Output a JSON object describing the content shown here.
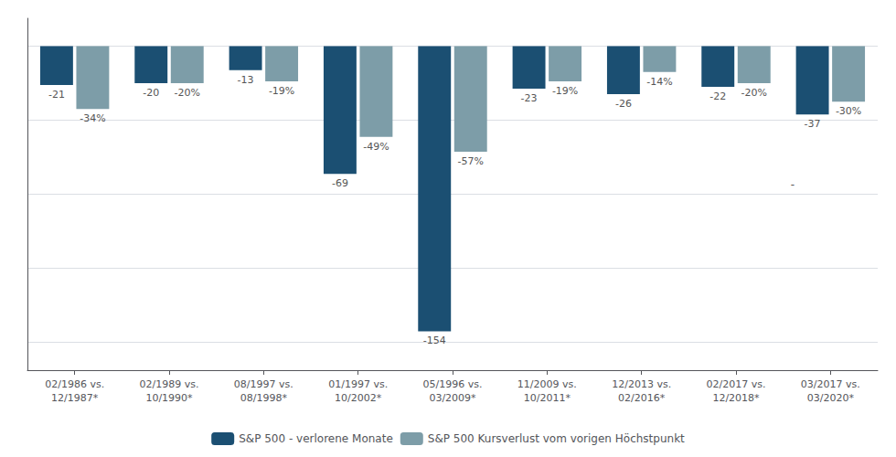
{
  "chart_data": {
    "type": "bar",
    "categories": [
      "02/1986 vs.\n12/1987*",
      "02/1989 vs.\n10/1990*",
      "08/1997 vs.\n08/1998*",
      "01/1997 vs.\n10/2002*",
      "05/1996 vs.\n03/2009*",
      "11/2009 vs.\n10/2011*",
      "12/2013 vs.\n02/2016*",
      "02/2017 vs.\n12/2018*",
      "03/2017 vs.\n03/2020*"
    ],
    "series": [
      {
        "name": "S&P 500 - verlorene Monate",
        "color": "#1b4f72",
        "values": [
          -21,
          -20,
          -13,
          -69,
          -154,
          -23,
          -26,
          -22,
          -37
        ]
      },
      {
        "name": "S&P 500 Kursverlust vom vorigen Höchstpunkt",
        "color": "#7d9da8",
        "values": [
          -34,
          -20,
          -19,
          -49,
          -57,
          -19,
          -14,
          -20,
          -30
        ],
        "value_labels": [
          "-34%",
          "-20%",
          "-19%",
          "-49%",
          "-57%",
          "-19%",
          "-14%",
          "-20%",
          "-30%"
        ]
      }
    ],
    "ylim": [
      -175,
      15
    ],
    "yticks": [
      -160,
      -120,
      -80,
      -40,
      0
    ],
    "grid": true,
    "legend": "bottom",
    "data_labels": true,
    "tick_labels": "x",
    "annotations": [
      {
        "text": "-",
        "x": "02/2017 vs.\n12/2018*",
        "y": -75
      }
    ]
  }
}
